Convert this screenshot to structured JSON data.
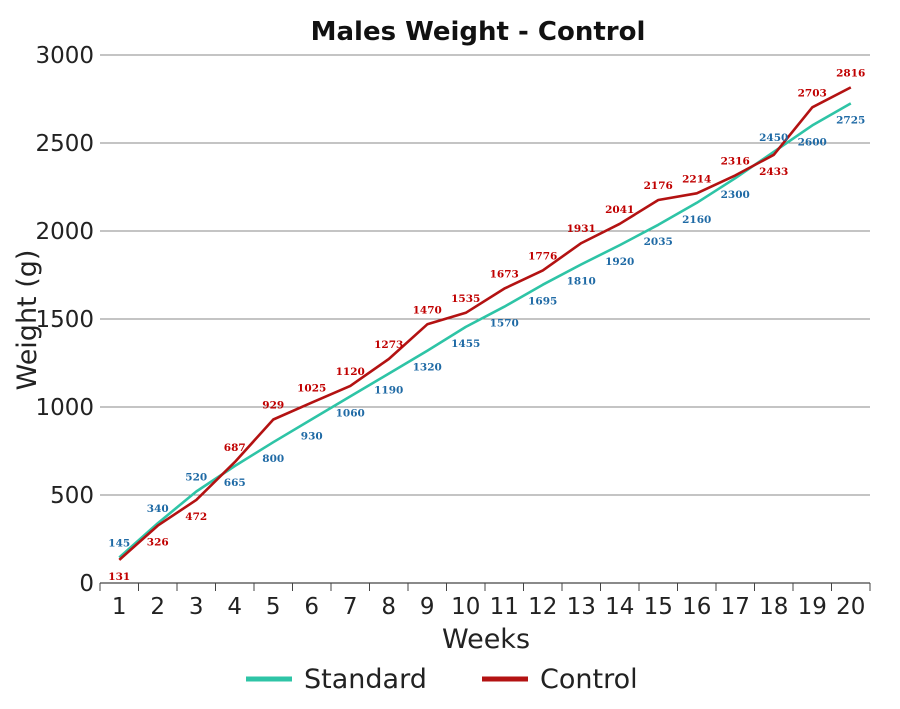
{
  "chart_data": {
    "type": "line",
    "title": "Males Weight - Control",
    "xlabel": "Weeks",
    "ylabel": "Weight (g)",
    "x": [
      1,
      2,
      3,
      4,
      5,
      6,
      7,
      8,
      9,
      10,
      11,
      12,
      13,
      14,
      15,
      16,
      17,
      18,
      19,
      20
    ],
    "ylim": [
      0,
      3000
    ],
    "yticks": [
      0,
      500,
      1000,
      1500,
      2000,
      2500,
      3000
    ],
    "grid": true,
    "legend_position": "bottom",
    "series": [
      {
        "name": "Standard",
        "color": "#2ec4a6",
        "label_color": "#1f6aa5",
        "values": [
          145,
          340,
          520,
          665,
          800,
          930,
          1060,
          1190,
          1320,
          1455,
          1570,
          1695,
          1810,
          1920,
          2035,
          2160,
          2300,
          2450,
          2600,
          2725
        ]
      },
      {
        "name": "Control",
        "color": "#b31212",
        "label_color": "#c00000",
        "values": [
          131,
          326,
          472,
          687,
          929,
          1025,
          1120,
          1273,
          1470,
          1535,
          1673,
          1776,
          1931,
          2041,
          2176,
          2214,
          2316,
          2433,
          2703,
          2816
        ]
      }
    ]
  }
}
